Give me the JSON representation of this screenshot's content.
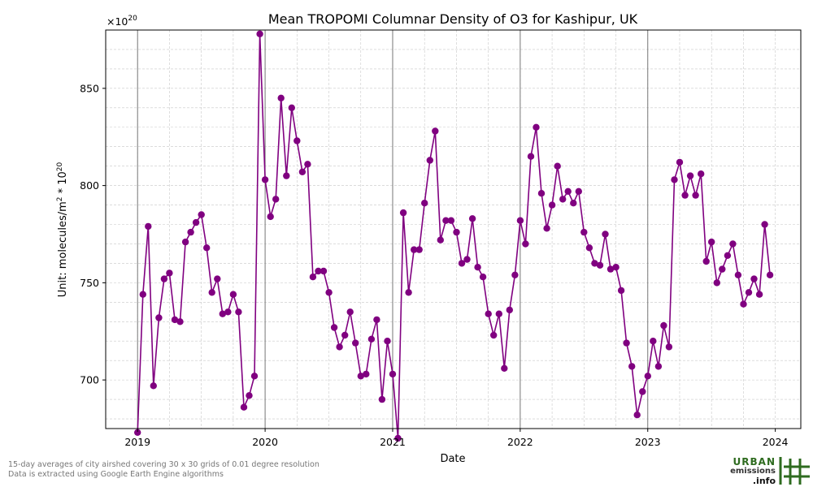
{
  "chart_data": {
    "type": "line",
    "title": "Mean TROPOMI Columnar Density of O3 for Kashipur, UK",
    "xlabel": "Date",
    "ylabel_prefix": "Unit: molecules/m",
    "ylabel_sup1": "2",
    "ylabel_mid": " * 10",
    "ylabel_sup2": "20",
    "multiplier_base": "×10",
    "multiplier_exp": "20",
    "xlim": [
      2018.75,
      2024.2
    ],
    "ylim": [
      675,
      880
    ],
    "x_ticks": [
      2019,
      2020,
      2021,
      2022,
      2023,
      2024
    ],
    "x_tick_labels": [
      "2019",
      "2020",
      "2021",
      "2022",
      "2023",
      "2024"
    ],
    "y_ticks": [
      700,
      750,
      800,
      850
    ],
    "y_tick_labels": [
      "700",
      "750",
      "800",
      "850"
    ],
    "grid": true,
    "year_lines": [
      2019,
      2020,
      2021,
      2022,
      2023
    ],
    "series": [
      {
        "color": "#800080",
        "marker": "circle",
        "x_start": 2019.0,
        "x_step": 0.04167,
        "values": [
          673,
          744,
          779,
          697,
          732,
          752,
          755,
          731,
          730,
          771,
          776,
          781,
          785,
          768,
          745,
          752,
          734,
          735,
          744,
          735,
          686,
          692,
          702,
          878,
          803,
          784,
          793,
          845,
          805,
          840,
          823,
          807,
          811,
          753,
          756,
          756,
          745,
          727,
          717,
          723,
          735,
          719,
          702,
          703,
          721,
          731,
          690,
          720,
          703,
          670,
          786,
          745,
          767,
          767,
          791,
          813,
          828,
          772,
          782,
          782,
          776,
          760,
          762,
          783,
          758,
          753,
          734,
          723,
          734,
          706,
          736,
          754,
          782,
          770,
          815,
          830,
          796,
          778,
          790,
          810,
          793,
          797,
          791,
          797,
          776,
          768,
          760,
          759,
          775,
          757,
          758,
          746,
          719,
          707,
          682,
          694,
          702,
          720,
          707,
          728,
          717,
          803,
          812,
          795,
          805,
          795,
          806,
          761,
          771,
          750,
          757,
          764,
          770,
          754,
          739,
          745,
          752,
          744,
          780,
          754
        ]
      }
    ]
  },
  "footnotes": {
    "line1": "15-day averages of city airshed covering 30 x 30 grids of 0.01 degree resolution",
    "line2": "Data is extracted using Google Earth Engine algorithms"
  },
  "logo": {
    "line1": "URBAN",
    "line2": "emissions",
    "line3": ".info",
    "color": "#2e6b1f"
  }
}
